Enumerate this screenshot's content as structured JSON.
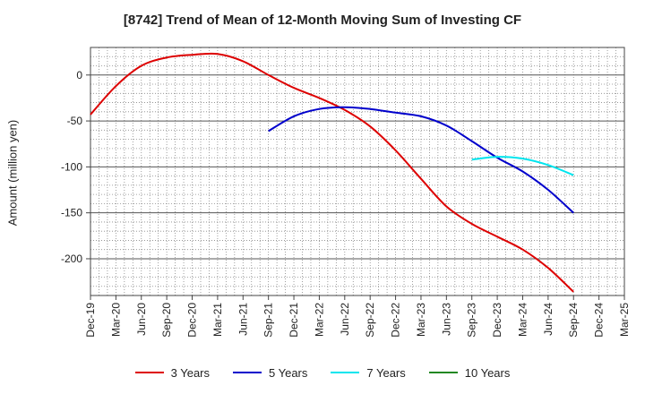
{
  "chart_data": {
    "type": "line",
    "title": "[8742]  Trend of Mean of 12-Month Moving Sum of Investing CF",
    "xlabel": "",
    "ylabel": "Amount (million yen)",
    "ylim": [
      -240,
      30
    ],
    "yticks": [
      0,
      -50,
      -100,
      -150,
      -200
    ],
    "categories": [
      "Dec-19",
      "Mar-20",
      "Jun-20",
      "Sep-20",
      "Dec-20",
      "Mar-21",
      "Jun-21",
      "Sep-21",
      "Dec-21",
      "Mar-22",
      "Jun-22",
      "Sep-22",
      "Dec-22",
      "Mar-23",
      "Jun-23",
      "Sep-23",
      "Dec-23",
      "Mar-24",
      "Jun-24",
      "Sep-24",
      "Dec-24",
      "Mar-25"
    ],
    "series": [
      {
        "name": "3 Years",
        "color": "#dd0000",
        "values": [
          -43,
          -12,
          10,
          19,
          22,
          23,
          15,
          0,
          -14,
          -25,
          -38,
          -56,
          -82,
          -113,
          -143,
          -162,
          -176,
          -190,
          -210,
          -236,
          null,
          null
        ]
      },
      {
        "name": "5 Years",
        "color": "#0000cc",
        "values": [
          null,
          null,
          null,
          null,
          null,
          null,
          null,
          -61,
          -45,
          -37,
          -35,
          -37,
          -41,
          -45,
          -55,
          -72,
          -90,
          -105,
          -125,
          -150,
          null,
          null
        ]
      },
      {
        "name": "7 Years",
        "color": "#00e5ee",
        "values": [
          null,
          null,
          null,
          null,
          null,
          null,
          null,
          null,
          null,
          null,
          null,
          null,
          null,
          null,
          null,
          -92,
          -89,
          -91,
          -98,
          -109,
          null,
          null
        ]
      },
      {
        "name": "10 Years",
        "color": "#228822",
        "values": [
          null,
          null,
          null,
          null,
          null,
          null,
          null,
          null,
          null,
          null,
          null,
          null,
          null,
          null,
          null,
          null,
          null,
          null,
          null,
          null,
          null,
          null
        ]
      }
    ]
  }
}
